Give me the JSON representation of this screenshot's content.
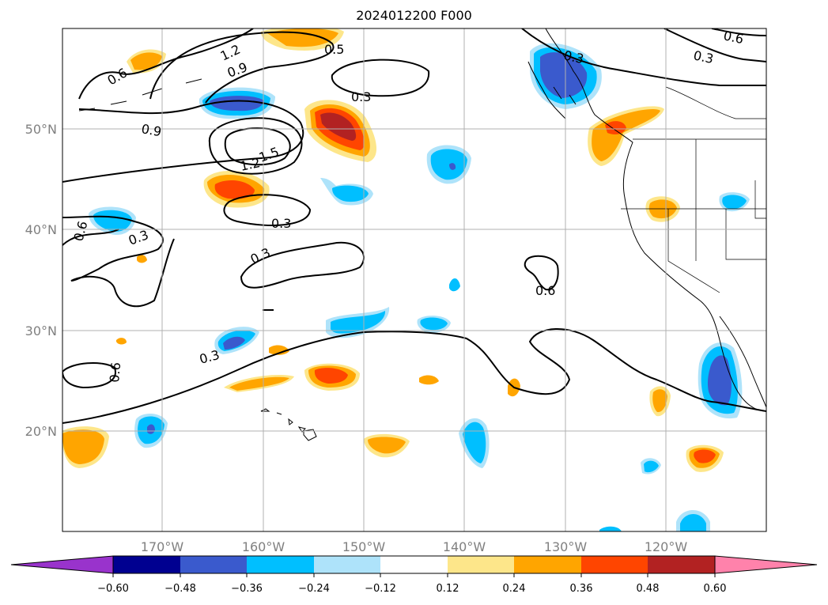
{
  "title": "2024012200 F000",
  "colors": {
    "very_low": "#9933cc",
    "neg060": "#000090",
    "neg048": "#3a5acd",
    "neg036": "#00bfff",
    "neg024": "#aee3fa",
    "neutral": "#ffffff",
    "pos012": "#fde68a",
    "pos024": "#ffa500",
    "pos036": "#ff4500",
    "pos048": "#b22222",
    "very_high": "#ff82ab",
    "contour": "#000000",
    "grid": "#b0b0b0",
    "axis_label": "#808080"
  },
  "latitude_labels": [
    "50°N",
    "40°N",
    "30°N",
    "20°N"
  ],
  "longitude_labels": [
    "170°W",
    "160°W",
    "150°W",
    "140°W",
    "130°W",
    "120°W"
  ],
  "contour_labels": [
    "1.2",
    "0.9",
    "0.6",
    "0.5",
    "0.3",
    "0.9",
    "1.5",
    "1.2",
    "0.3",
    "0.6",
    "0.3",
    "0.3",
    "0.6",
    "0.3",
    "0.6",
    "0.3",
    "0.6",
    "0.3"
  ],
  "colorbar": {
    "labels": [
      "−0.60",
      "−0.48",
      "−0.36",
      "−0.24",
      "−0.12",
      "0.12",
      "0.24",
      "0.36",
      "0.48",
      "0.60"
    ]
  }
}
